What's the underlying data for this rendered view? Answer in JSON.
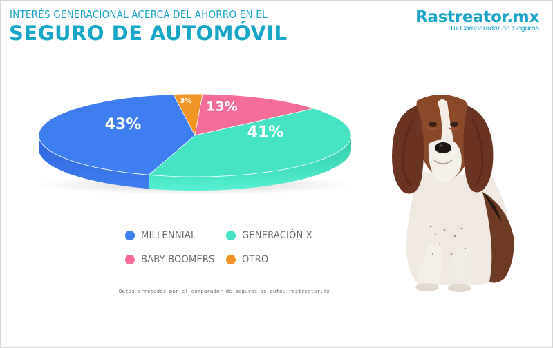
{
  "header": {
    "subtitle": "INTERÉS GENERACIONAL ACERCA DEL AHORRO EN EL",
    "title": "SEGURO DE AUTOMÓVIL"
  },
  "brand": {
    "name": "Rastreator.mx",
    "tagline": "Tu Comparador de Seguros"
  },
  "chart_data": {
    "type": "pie",
    "title": "SEGURO DE AUTOMÓVIL",
    "subtitle": "INTERÉS GENERACIONAL ACERCA DEL AHORRO EN EL",
    "categories": [
      "MILLENNIAL",
      "GENERACIÓN X",
      "BABY BOOMERS",
      "OTRO"
    ],
    "values": [
      43,
      41,
      13,
      3
    ],
    "labels": [
      "43%",
      "41%",
      "13%",
      "3%"
    ],
    "colors": [
      "#3f7ef0",
      "#46e4c4",
      "#f46c98",
      "#f29424"
    ],
    "legend_position": "bottom"
  },
  "legend": {
    "items": [
      {
        "label": "MILLENNIAL",
        "color": "#3f7ef0"
      },
      {
        "label": "GENERACIÓN X",
        "color": "#46e4c4"
      },
      {
        "label": "BABY BOOMERS",
        "color": "#f46c98"
      },
      {
        "label": "OTRO",
        "color": "#f29424"
      }
    ]
  },
  "footer": {
    "source": "Datos arrojados por el comparador de seguros de auto: rastreator.mx"
  },
  "image": {
    "icon": "basset-hound-dog"
  }
}
